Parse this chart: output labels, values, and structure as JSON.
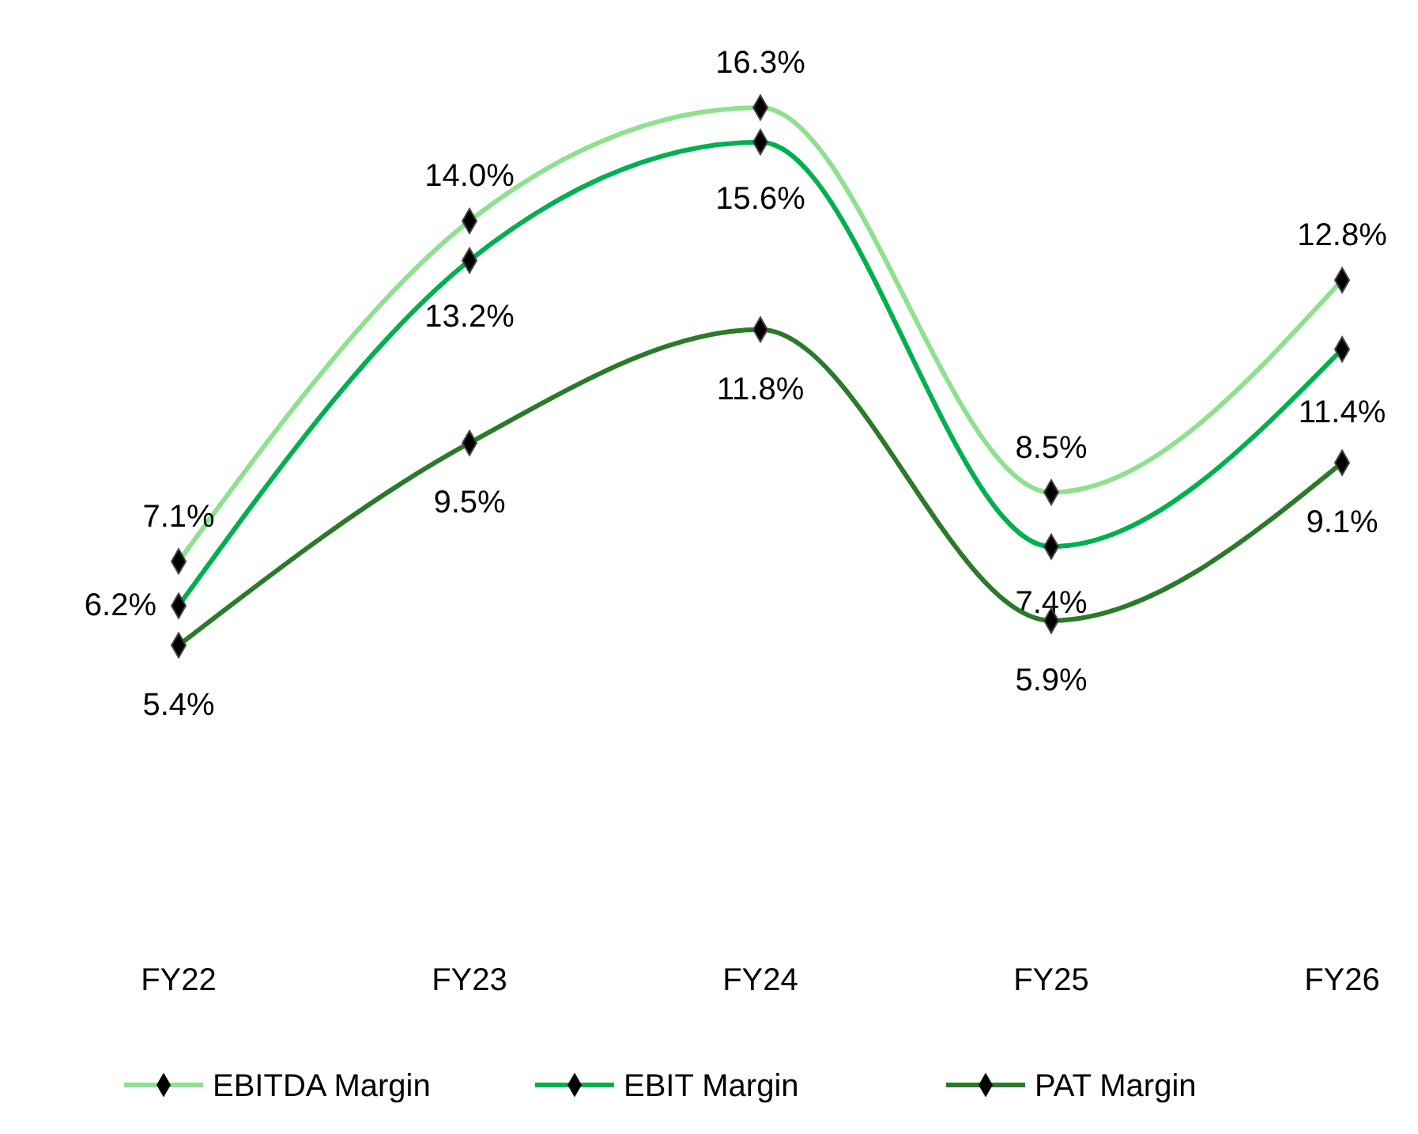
{
  "chart_data": {
    "type": "line",
    "categories": [
      "FY22",
      "FY23",
      "FY24",
      "FY25",
      "FY26"
    ],
    "series": [
      {
        "name": "EBITDA Margin",
        "color": "#8fe08f",
        "values": [
          7.1,
          14.0,
          16.3,
          8.5,
          12.8
        ],
        "value_labels": [
          "7.1%",
          "14.0%",
          "16.3%",
          "8.5%",
          "12.8%"
        ]
      },
      {
        "name": "EBIT Margin",
        "color": "#00b050",
        "values": [
          6.2,
          13.2,
          15.6,
          7.4,
          11.4
        ],
        "value_labels": [
          "6.2%",
          "13.2%",
          "15.6%",
          "7.4%",
          "11.4%"
        ]
      },
      {
        "name": "PAT Margin",
        "color": "#2a7a2a",
        "values": [
          5.4,
          9.5,
          11.8,
          5.9,
          9.1
        ],
        "value_labels": [
          "5.4%",
          "9.5%",
          "11.8%",
          "5.9%",
          "9.1%"
        ]
      }
    ],
    "tick_labels": "x",
    "marker": "diamond",
    "legend": "bottom"
  }
}
